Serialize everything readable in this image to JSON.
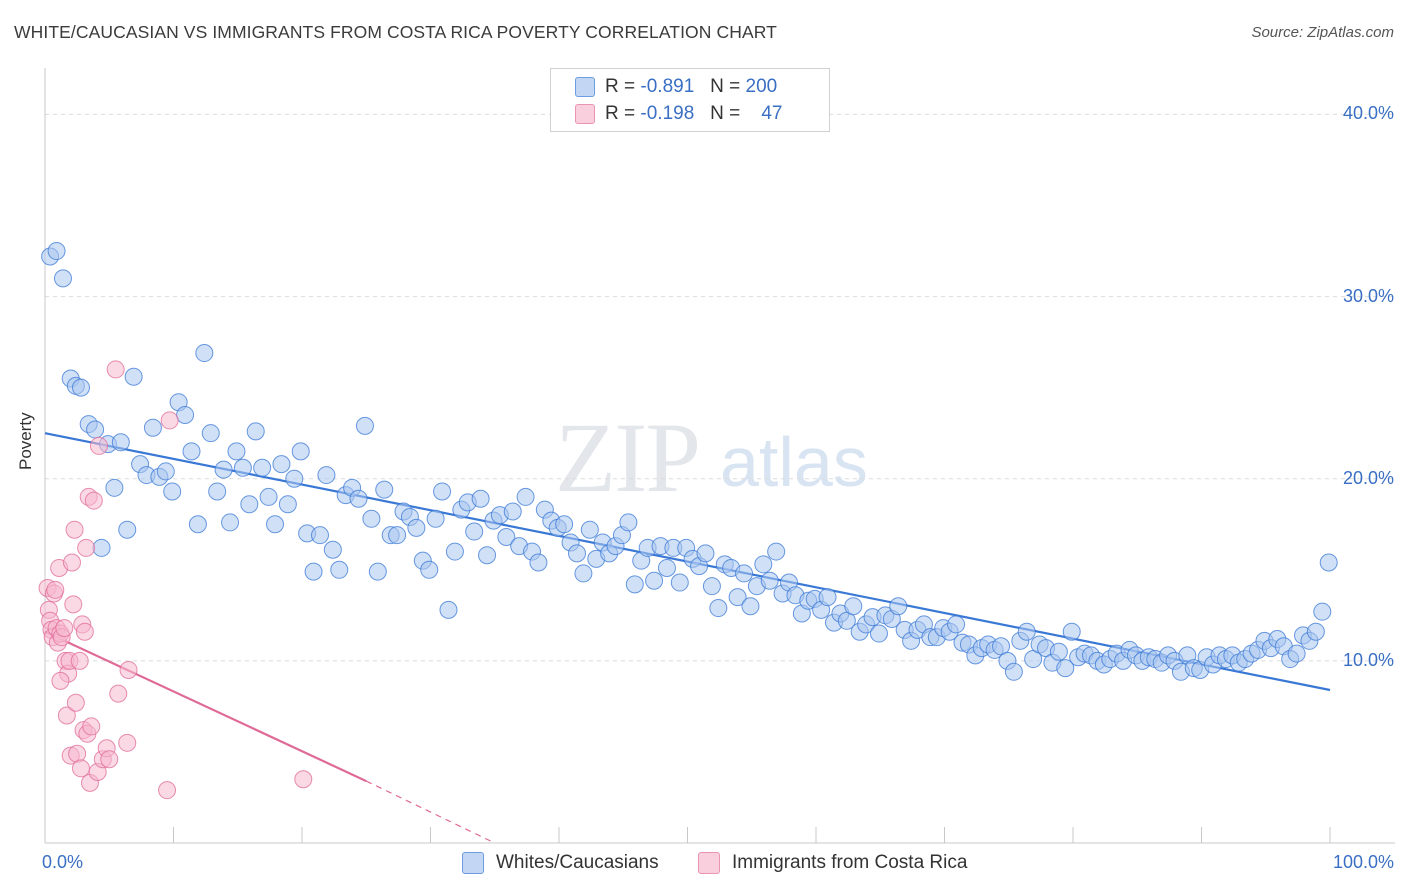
{
  "title": "WHITE/CAUCASIAN VS IMMIGRANTS FROM COSTA RICA POVERTY CORRELATION CHART",
  "source": "Source: ZipAtlas.com",
  "watermark": {
    "zip": "ZIP",
    "atlas": "atlas"
  },
  "colors": {
    "blue": "#3a78d6",
    "blue_fill": "#a9c6f0",
    "pink": "#e06a97",
    "pink_fill": "#f5b8cd",
    "tick_text": "#3a6fc4"
  },
  "legend": {
    "row1": {
      "r_label": "R =",
      "r_value": "-0.891",
      "n_label": "N =",
      "n_value": "200"
    },
    "row2": {
      "r_label": "R =",
      "r_value": "-0.198",
      "n_label": "N =",
      "n_value": "47"
    }
  },
  "bottom_legend": {
    "series1": "Whites/Caucasians",
    "series2": "Immigrants from Costa Rica"
  },
  "chart_data": {
    "type": "scatter",
    "title": "WHITE/CAUCASIAN VS IMMIGRANTS FROM COSTA RICA POVERTY CORRELATION CHART",
    "xlabel": "",
    "ylabel": "Poverty",
    "xlim": [
      0,
      100
    ],
    "ylim": [
      0,
      42
    ],
    "y_ticks": [
      {
        "value": 10,
        "label": "10.0%"
      },
      {
        "value": 20,
        "label": "20.0%"
      },
      {
        "value": 30,
        "label": "30.0%"
      },
      {
        "value": 40,
        "label": "40.0%"
      }
    ],
    "x_tick_labels": [
      {
        "value": 0,
        "label": "0.0%"
      },
      {
        "value": 100,
        "label": "100.0%"
      }
    ],
    "x_minor_ticks": [
      10,
      20,
      30,
      40,
      50,
      60,
      70,
      80,
      90
    ],
    "series": [
      {
        "name": "Whites/Caucasians",
        "color": "#3a78d6",
        "trend": {
          "x0": 0,
          "y0": 22.5,
          "x1": 100,
          "y1": 8.4
        },
        "points": [
          [
            0.4,
            32.2
          ],
          [
            0.9,
            32.5
          ],
          [
            1.4,
            31.0
          ],
          [
            2.0,
            25.5
          ],
          [
            2.4,
            25.1
          ],
          [
            2.8,
            25.0
          ],
          [
            3.4,
            23.0
          ],
          [
            3.9,
            22.7
          ],
          [
            4.4,
            16.2
          ],
          [
            4.9,
            21.9
          ],
          [
            5.4,
            19.5
          ],
          [
            5.9,
            22.0
          ],
          [
            6.4,
            17.2
          ],
          [
            6.9,
            25.6
          ],
          [
            7.4,
            20.8
          ],
          [
            7.9,
            20.2
          ],
          [
            8.4,
            22.8
          ],
          [
            8.9,
            20.1
          ],
          [
            9.4,
            20.4
          ],
          [
            9.9,
            19.3
          ],
          [
            10.4,
            24.2
          ],
          [
            10.9,
            23.5
          ],
          [
            11.4,
            21.5
          ],
          [
            11.9,
            17.5
          ],
          [
            12.4,
            26.9
          ],
          [
            12.9,
            22.5
          ],
          [
            13.4,
            19.3
          ],
          [
            13.9,
            20.5
          ],
          [
            14.4,
            17.6
          ],
          [
            14.9,
            21.5
          ],
          [
            15.4,
            20.6
          ],
          [
            15.9,
            18.6
          ],
          [
            16.4,
            22.6
          ],
          [
            16.9,
            20.6
          ],
          [
            17.4,
            19.0
          ],
          [
            17.9,
            17.5
          ],
          [
            18.4,
            20.8
          ],
          [
            18.9,
            18.6
          ],
          [
            19.4,
            20.0
          ],
          [
            19.9,
            21.5
          ],
          [
            20.4,
            17.0
          ],
          [
            20.9,
            14.9
          ],
          [
            21.4,
            16.9
          ],
          [
            21.9,
            20.2
          ],
          [
            22.4,
            16.1
          ],
          [
            22.9,
            15.0
          ],
          [
            23.4,
            19.1
          ],
          [
            23.9,
            19.5
          ],
          [
            24.4,
            18.9
          ],
          [
            24.9,
            22.9
          ],
          [
            25.4,
            17.8
          ],
          [
            25.9,
            14.9
          ],
          [
            26.4,
            19.4
          ],
          [
            26.9,
            16.9
          ],
          [
            27.4,
            16.9
          ],
          [
            27.9,
            18.2
          ],
          [
            28.4,
            17.9
          ],
          [
            28.9,
            17.3
          ],
          [
            29.4,
            15.5
          ],
          [
            29.9,
            15.0
          ],
          [
            30.4,
            17.8
          ],
          [
            30.9,
            19.3
          ],
          [
            31.4,
            12.8
          ],
          [
            31.9,
            16.0
          ],
          [
            32.4,
            18.3
          ],
          [
            32.9,
            18.7
          ],
          [
            33.4,
            17.1
          ],
          [
            33.9,
            18.9
          ],
          [
            34.4,
            15.8
          ],
          [
            34.9,
            17.7
          ],
          [
            35.4,
            18.0
          ],
          [
            35.9,
            16.8
          ],
          [
            36.4,
            18.2
          ],
          [
            36.9,
            16.3
          ],
          [
            37.4,
            19.0
          ],
          [
            37.9,
            16.0
          ],
          [
            38.4,
            15.4
          ],
          [
            38.9,
            18.3
          ],
          [
            39.4,
            17.7
          ],
          [
            39.9,
            17.3
          ],
          [
            40.4,
            17.5
          ],
          [
            40.9,
            16.5
          ],
          [
            41.4,
            15.9
          ],
          [
            41.9,
            14.8
          ],
          [
            42.4,
            17.2
          ],
          [
            42.9,
            15.6
          ],
          [
            43.4,
            16.5
          ],
          [
            43.9,
            15.9
          ],
          [
            44.4,
            16.3
          ],
          [
            44.9,
            16.9
          ],
          [
            45.4,
            17.6
          ],
          [
            45.9,
            14.2
          ],
          [
            46.4,
            15.5
          ],
          [
            46.9,
            16.2
          ],
          [
            47.4,
            14.4
          ],
          [
            47.9,
            16.3
          ],
          [
            48.4,
            15.1
          ],
          [
            48.9,
            16.2
          ],
          [
            49.4,
            14.3
          ],
          [
            49.9,
            16.2
          ],
          [
            50.4,
            15.6
          ],
          [
            50.9,
            15.2
          ],
          [
            51.4,
            15.9
          ],
          [
            51.9,
            14.1
          ],
          [
            52.4,
            12.9
          ],
          [
            52.9,
            15.3
          ],
          [
            53.4,
            15.1
          ],
          [
            53.9,
            13.5
          ],
          [
            54.4,
            14.8
          ],
          [
            54.9,
            13.0
          ],
          [
            55.4,
            14.1
          ],
          [
            55.9,
            15.3
          ],
          [
            56.4,
            14.4
          ],
          [
            56.9,
            16.0
          ],
          [
            57.4,
            13.7
          ],
          [
            57.9,
            14.3
          ],
          [
            58.4,
            13.6
          ],
          [
            58.9,
            12.6
          ],
          [
            59.4,
            13.3
          ],
          [
            59.9,
            13.4
          ],
          [
            60.4,
            12.8
          ],
          [
            60.9,
            13.5
          ],
          [
            61.4,
            12.1
          ],
          [
            61.9,
            12.6
          ],
          [
            62.4,
            12.2
          ],
          [
            62.9,
            13.0
          ],
          [
            63.4,
            11.6
          ],
          [
            63.9,
            12.0
          ],
          [
            64.4,
            12.4
          ],
          [
            64.9,
            11.5
          ],
          [
            65.4,
            12.5
          ],
          [
            65.9,
            12.3
          ],
          [
            66.4,
            13.0
          ],
          [
            66.9,
            11.7
          ],
          [
            67.4,
            11.1
          ],
          [
            67.9,
            11.7
          ],
          [
            68.4,
            12.0
          ],
          [
            68.9,
            11.3
          ],
          [
            69.4,
            11.3
          ],
          [
            69.9,
            11.8
          ],
          [
            70.4,
            11.6
          ],
          [
            70.9,
            12.0
          ],
          [
            71.4,
            11.0
          ],
          [
            71.9,
            10.9
          ],
          [
            72.4,
            10.3
          ],
          [
            72.9,
            10.7
          ],
          [
            73.4,
            10.9
          ],
          [
            73.9,
            10.6
          ],
          [
            74.4,
            10.8
          ],
          [
            74.9,
            10.0
          ],
          [
            75.4,
            9.4
          ],
          [
            75.9,
            11.1
          ],
          [
            76.4,
            11.6
          ],
          [
            76.9,
            10.1
          ],
          [
            77.4,
            10.9
          ],
          [
            77.9,
            10.7
          ],
          [
            78.4,
            9.9
          ],
          [
            78.9,
            10.5
          ],
          [
            79.4,
            9.6
          ],
          [
            79.9,
            11.6
          ],
          [
            80.4,
            10.2
          ],
          [
            80.9,
            10.4
          ],
          [
            81.4,
            10.3
          ],
          [
            81.9,
            10.0
          ],
          [
            82.4,
            9.8
          ],
          [
            82.9,
            10.1
          ],
          [
            83.4,
            10.4
          ],
          [
            83.9,
            10.0
          ],
          [
            84.4,
            10.6
          ],
          [
            84.9,
            10.3
          ],
          [
            85.4,
            10.0
          ],
          [
            85.9,
            10.2
          ],
          [
            86.4,
            10.1
          ],
          [
            86.9,
            9.9
          ],
          [
            87.4,
            10.3
          ],
          [
            87.9,
            10.0
          ],
          [
            88.4,
            9.4
          ],
          [
            88.9,
            10.3
          ],
          [
            89.4,
            9.6
          ],
          [
            89.9,
            9.5
          ],
          [
            90.4,
            10.2
          ],
          [
            90.9,
            9.8
          ],
          [
            91.4,
            10.3
          ],
          [
            91.9,
            10.1
          ],
          [
            92.4,
            10.3
          ],
          [
            92.9,
            9.9
          ],
          [
            93.4,
            10.1
          ],
          [
            93.9,
            10.4
          ],
          [
            94.4,
            10.6
          ],
          [
            94.9,
            11.1
          ],
          [
            95.4,
            10.7
          ],
          [
            95.9,
            11.2
          ],
          [
            96.4,
            10.8
          ],
          [
            96.9,
            10.1
          ],
          [
            97.4,
            10.4
          ],
          [
            97.9,
            11.4
          ],
          [
            98.4,
            11.1
          ],
          [
            98.9,
            11.6
          ],
          [
            99.4,
            12.7
          ],
          [
            99.9,
            15.4
          ]
        ]
      },
      {
        "name": "Immigrants from Costa Rica",
        "color": "#e06a97",
        "trend": {
          "x0": 0,
          "y0": 11.6,
          "x1": 25,
          "y1": 3.4,
          "dashed_to": {
            "x": 35,
            "y": 0
          }
        },
        "points": [
          [
            0.2,
            14.0
          ],
          [
            0.3,
            12.8
          ],
          [
            0.4,
            12.2
          ],
          [
            0.5,
            11.7
          ],
          [
            0.6,
            11.3
          ],
          [
            0.7,
            13.7
          ],
          [
            0.8,
            13.9
          ],
          [
            0.9,
            11.8
          ],
          [
            1.0,
            11.0
          ],
          [
            1.1,
            15.1
          ],
          [
            1.2,
            11.5
          ],
          [
            1.3,
            11.3
          ],
          [
            1.5,
            11.8
          ],
          [
            1.6,
            10.0
          ],
          [
            1.7,
            7.0
          ],
          [
            1.8,
            9.3
          ],
          [
            1.9,
            10.0
          ],
          [
            2.0,
            4.8
          ],
          [
            2.1,
            15.4
          ],
          [
            2.2,
            13.1
          ],
          [
            2.3,
            17.2
          ],
          [
            2.4,
            7.7
          ],
          [
            2.5,
            4.9
          ],
          [
            2.7,
            10.0
          ],
          [
            2.8,
            4.1
          ],
          [
            2.9,
            12.0
          ],
          [
            3.0,
            6.2
          ],
          [
            3.1,
            11.6
          ],
          [
            3.2,
            16.2
          ],
          [
            3.3,
            6.0
          ],
          [
            3.4,
            19.0
          ],
          [
            3.5,
            3.3
          ],
          [
            3.6,
            6.4
          ],
          [
            3.8,
            18.8
          ],
          [
            4.1,
            3.9
          ],
          [
            4.2,
            21.8
          ],
          [
            4.5,
            4.6
          ],
          [
            4.8,
            5.2
          ],
          [
            5.0,
            4.6
          ],
          [
            5.5,
            26.0
          ],
          [
            5.7,
            8.2
          ],
          [
            6.4,
            5.5
          ],
          [
            6.5,
            9.5
          ],
          [
            9.5,
            2.9
          ],
          [
            9.7,
            23.2
          ],
          [
            20.1,
            3.5
          ],
          [
            1.2,
            8.9
          ]
        ]
      }
    ]
  }
}
